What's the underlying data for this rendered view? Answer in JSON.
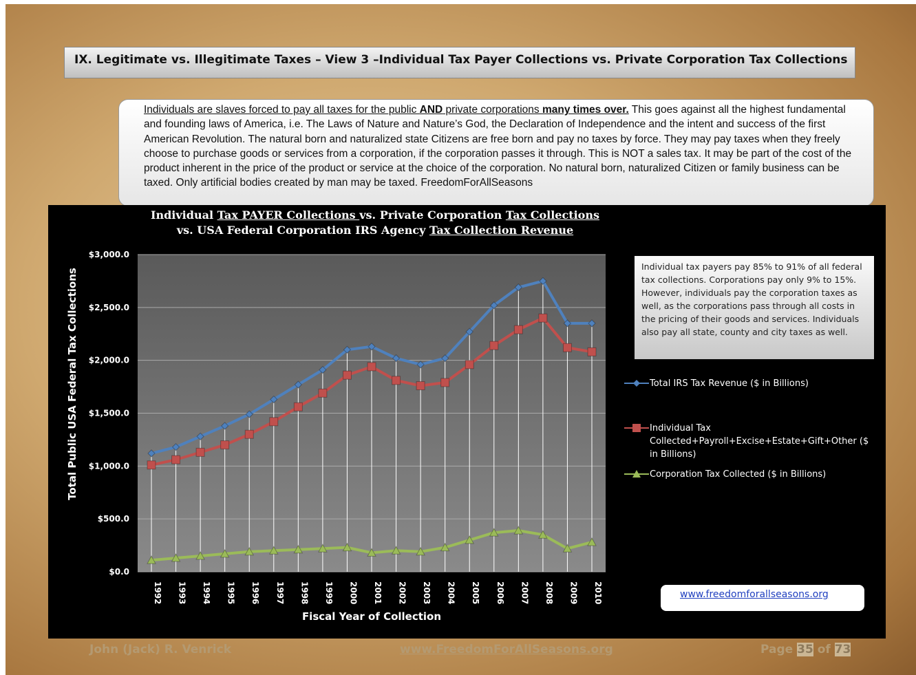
{
  "header": {
    "title": "IX. Legitimate vs. Illegitimate Taxes – View 3 –Individual Tax Payer Collections vs. Private Corporation Tax Collections"
  },
  "scroll": {
    "segments": [
      "Individuals are slaves forced to pay all taxes for the public ",
      "AND",
      " private corporations ",
      "many times over.",
      "  This goes against all the highest fundamental and founding laws of America, i.e. The Laws of Nature and Nature’s God, the Declaration of Independence and the intent and success of the first American Revolution. The natural born and naturalized state Citizens are free born and pay no taxes by force.  They may pay taxes when they freely choose to purchase goods or services from a corporation, if the corporation passes it through. This is NOT a sales tax.  It may be part of the cost of the product inherent in the price of the product or service at the choice of the corporation.  No natural born, naturalized Citizen or family business can be taxed. Only artificial bodies created by man may be taxed. FreedomForAllSeasons"
    ]
  },
  "chart_data": {
    "type": "line",
    "title_lines": [
      [
        "Individual ",
        "Tax PAYER Collections ",
        "vs. Private Corporation ",
        "Tax Collections"
      ],
      [
        "vs. USA Federal Corporation IRS Agency ",
        "Tax Collection  Revenue"
      ]
    ],
    "y_label": "Total Public USA  Federal  Tax  Collections",
    "x_label": "Fiscal Year of Collection",
    "note": "Individual  tax payers  pay  85% to 91% of all federal tax collections.   Corporations pay only 9% to 15%.  However,  individuals pay the corporation taxes as well, as the corporations pass through all costs in the pricing of their goods and services. Individuals also pay all state, county and  city taxes as well.",
    "categories": [
      "1992",
      "1993",
      "1994",
      "1995",
      "1996",
      "1997",
      "1998",
      "1999",
      "2000",
      "2001",
      "2002",
      "2003",
      "2004",
      "2005",
      "2006",
      "2007",
      "2008",
      "2009",
      "2010"
    ],
    "series": [
      {
        "name": "Total IRS Tax Revenue ($ in Billions)",
        "color": "#4f81bd",
        "marker": "diamond",
        "values": [
          1120,
          1180,
          1280,
          1380,
          1490,
          1630,
          1770,
          1910,
          2100,
          2130,
          2020,
          1960,
          2020,
          2270,
          2520,
          2690,
          2750,
          2350,
          2350
        ]
      },
      {
        "name": "Individual Tax Collected+Payroll+Excise+Estate+Gift+Other ($ in Billions)",
        "color": "#c0504d",
        "marker": "square",
        "values": [
          1010,
          1060,
          1130,
          1200,
          1300,
          1420,
          1560,
          1690,
          1860,
          1940,
          1810,
          1760,
          1790,
          1960,
          2140,
          2290,
          2400,
          2120,
          2080
        ]
      },
      {
        "name": "Corporation Tax Collected ($ in Billions)",
        "color": "#9bbb59",
        "marker": "triangle",
        "values": [
          110,
          130,
          150,
          170,
          190,
          200,
          210,
          220,
          230,
          180,
          200,
          190,
          230,
          300,
          370,
          390,
          350,
          220,
          280
        ]
      }
    ],
    "ylim": [
      0,
      3000
    ],
    "yticks": [
      {
        "value": 0,
        "label": "$0.0"
      },
      {
        "value": 500,
        "label": "$500.0"
      },
      {
        "value": 1000,
        "label": "$1,000.0"
      },
      {
        "value": 1500,
        "label": "$1,500.0"
      },
      {
        "value": 2000,
        "label": "$2,000.0"
      },
      {
        "value": 2500,
        "label": "$2,500.0"
      },
      {
        "value": 3000,
        "label": "$3,000.0"
      }
    ],
    "grid": true,
    "drop_lines": true
  },
  "link": "www.freedomforallseasons.org",
  "footer": {
    "author": "John (Jack) R. Venrick",
    "site": "www.FreedomForAllSeasons.org",
    "page_word": "Page",
    "page": "35",
    "of_word": "of",
    "total": "73"
  }
}
